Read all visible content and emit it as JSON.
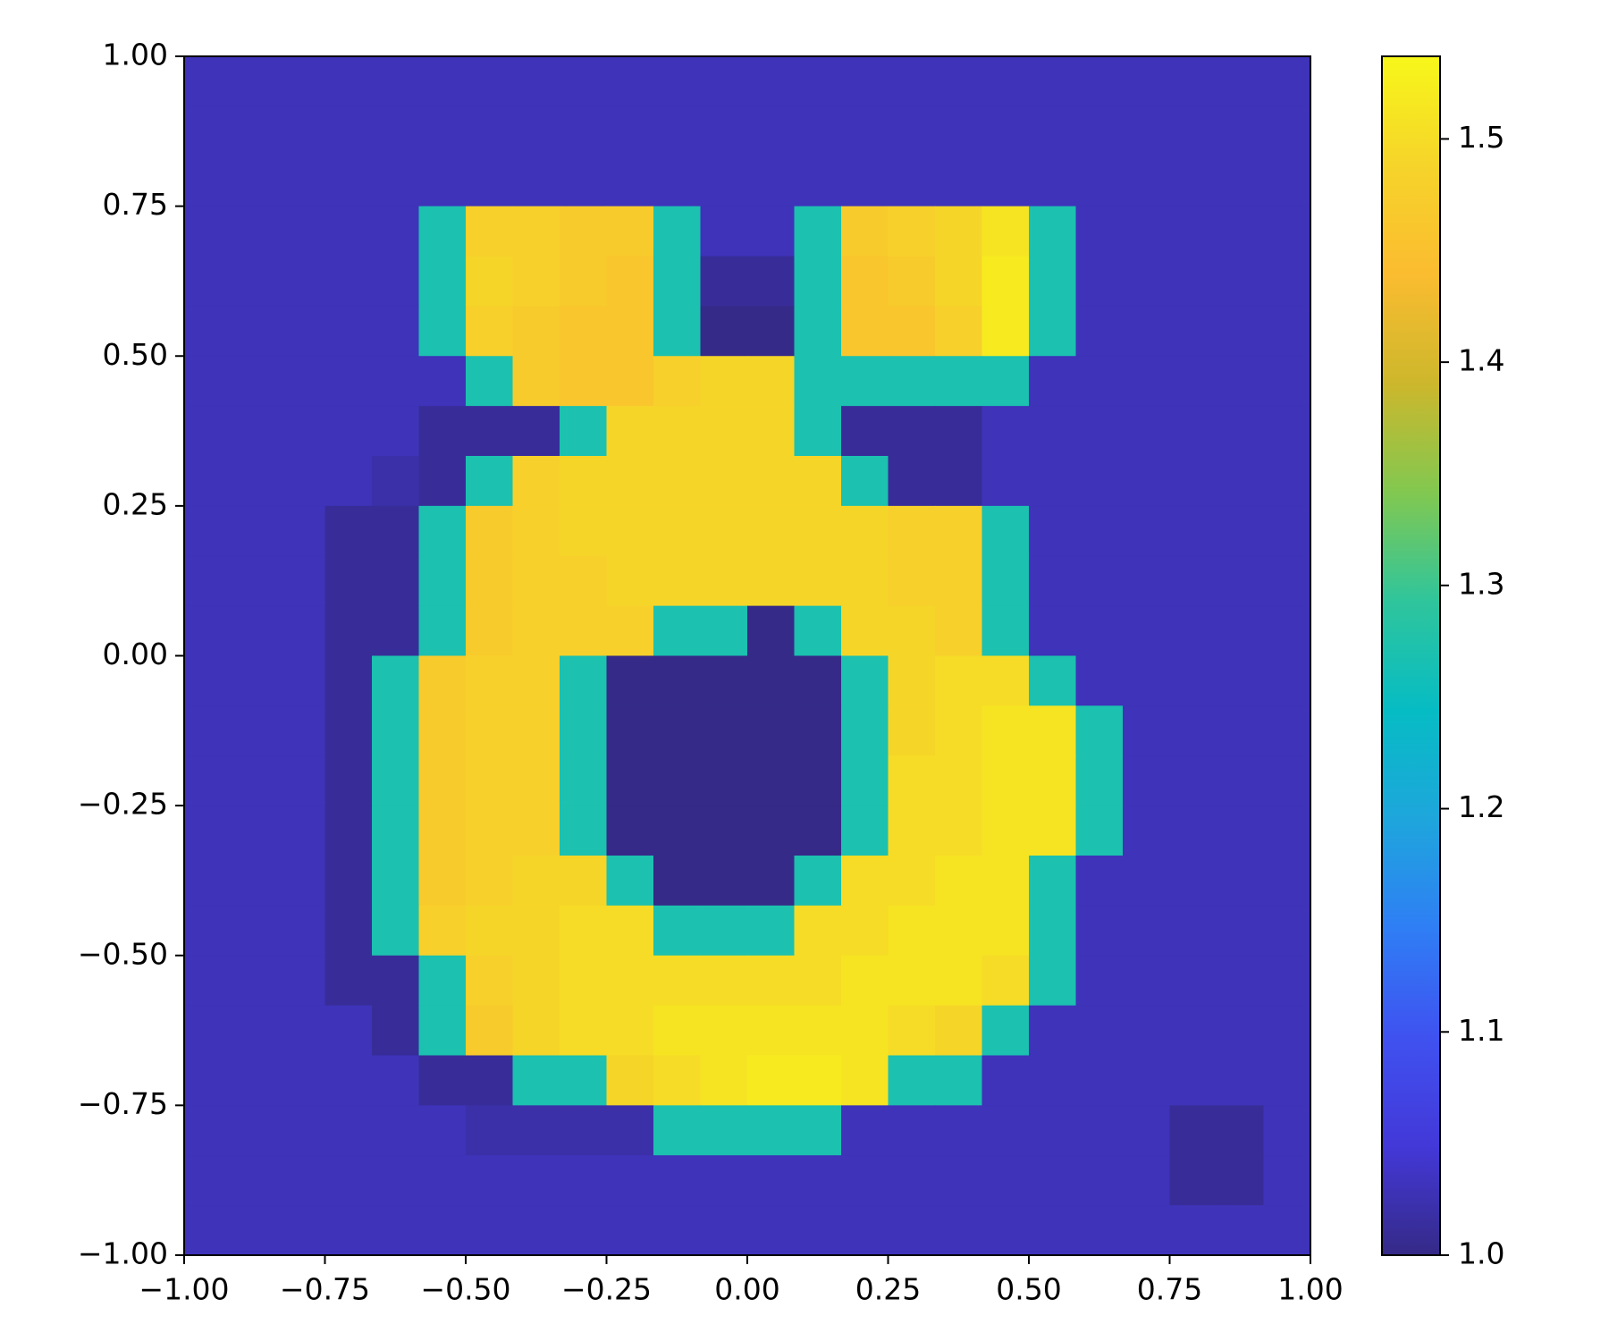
{
  "chart_data": {
    "type": "heatmap",
    "xlim": [
      -1,
      1
    ],
    "ylim": [
      -1,
      1
    ],
    "clim": [
      1.0,
      1.537
    ],
    "xticks": [
      {
        "value": -1,
        "label": "−1.00"
      },
      {
        "value": -0.75,
        "label": "−0.75"
      },
      {
        "value": -0.5,
        "label": "−0.50"
      },
      {
        "value": -0.25,
        "label": "−0.25"
      },
      {
        "value": 0,
        "label": "0.00"
      },
      0.25,
      {
        "value": 0.5,
        "label": "0.50"
      },
      0.75,
      {
        "value": 1,
        "label": "1.00"
      }
    ],
    "yticks": [
      {
        "value": -1,
        "label": "−1.00"
      },
      {
        "value": -0.75,
        "label": "−0.75"
      },
      {
        "value": -0.5,
        "label": "−0.50"
      },
      {
        "value": -0.25,
        "label": "−0.25"
      },
      {
        "value": 0,
        "label": "0.00"
      },
      0.25,
      {
        "value": 0.5,
        "label": "0.50"
      },
      0.75,
      {
        "value": 1,
        "label": "1.00"
      }
    ],
    "cticks": [
      {
        "value": 1,
        "label": "1.0"
      },
      1.1,
      1.2,
      1.3,
      1.4,
      1.5
    ],
    "colormap": [
      "#352a87",
      "#4338d8",
      "#3f52f0",
      "#2f7ef5",
      "#1ea6dc",
      "#06bcc4",
      "#2fc59c",
      "#82c850",
      "#cdb72c",
      "#fbbc30",
      "#f6d42a",
      "#f7f71a"
    ],
    "z": [
      [
        1.03,
        1.03,
        1.03,
        1.03,
        1.03,
        1.03,
        1.03,
        1.03,
        1.03,
        1.03,
        1.03,
        1.03,
        1.03,
        1.03,
        1.03,
        1.03,
        1.03,
        1.03,
        1.03,
        1.03,
        1.03,
        1.03,
        1.03,
        1.03
      ],
      [
        1.03,
        1.03,
        1.03,
        1.03,
        1.03,
        1.03,
        1.03,
        1.03,
        1.03,
        1.03,
        1.03,
        1.03,
        1.03,
        1.03,
        1.03,
        1.03,
        1.03,
        1.03,
        1.03,
        1.03,
        1.03,
        1.03,
        1.03,
        1.03
      ],
      [
        1.03,
        1.03,
        1.03,
        1.03,
        1.03,
        1.03,
        1.03,
        1.03,
        1.03,
        1.03,
        1.03,
        1.03,
        1.03,
        1.03,
        1.03,
        1.03,
        1.03,
        1.03,
        1.03,
        1.03,
        1.03,
        1.03,
        1.03,
        1.03
      ],
      [
        1.03,
        1.03,
        1.03,
        1.03,
        1.03,
        1.27,
        1.48,
        1.48,
        1.47,
        1.47,
        1.27,
        1.03,
        1.03,
        1.27,
        1.47,
        1.48,
        1.49,
        1.51,
        1.27,
        1.03,
        1.03,
        1.03,
        1.03,
        1.03
      ],
      [
        1.03,
        1.03,
        1.03,
        1.03,
        1.03,
        1.27,
        1.49,
        1.48,
        1.47,
        1.46,
        1.27,
        1.01,
        1.01,
        1.27,
        1.46,
        1.47,
        1.49,
        1.52,
        1.27,
        1.03,
        1.03,
        1.03,
        1.03,
        1.03
      ],
      [
        1.03,
        1.03,
        1.03,
        1.03,
        1.03,
        1.27,
        1.48,
        1.47,
        1.46,
        1.46,
        1.27,
        1.0,
        1.0,
        1.27,
        1.46,
        1.46,
        1.48,
        1.52,
        1.27,
        1.03,
        1.03,
        1.03,
        1.03,
        1.03
      ],
      [
        1.03,
        1.03,
        1.03,
        1.03,
        1.03,
        1.03,
        1.27,
        1.47,
        1.46,
        1.46,
        1.48,
        1.49,
        1.49,
        1.27,
        1.27,
        1.27,
        1.27,
        1.27,
        1.03,
        1.03,
        1.03,
        1.03,
        1.03,
        1.03
      ],
      [
        1.03,
        1.03,
        1.03,
        1.03,
        1.03,
        1.01,
        1.01,
        1.01,
        1.27,
        1.49,
        1.49,
        1.49,
        1.49,
        1.27,
        1.01,
        1.01,
        1.01,
        1.03,
        1.03,
        1.03,
        1.03,
        1.03,
        1.03,
        1.03
      ],
      [
        1.03,
        1.03,
        1.03,
        1.03,
        1.02,
        1.01,
        1.27,
        1.48,
        1.49,
        1.49,
        1.49,
        1.49,
        1.49,
        1.49,
        1.27,
        1.01,
        1.01,
        1.03,
        1.03,
        1.03,
        1.03,
        1.03,
        1.03,
        1.03
      ],
      [
        1.03,
        1.03,
        1.03,
        1.01,
        1.01,
        1.27,
        1.47,
        1.48,
        1.49,
        1.49,
        1.49,
        1.49,
        1.49,
        1.49,
        1.49,
        1.48,
        1.48,
        1.27,
        1.03,
        1.03,
        1.03,
        1.03,
        1.03,
        1.03
      ],
      [
        1.03,
        1.03,
        1.03,
        1.01,
        1.01,
        1.27,
        1.47,
        1.48,
        1.48,
        1.49,
        1.49,
        1.49,
        1.49,
        1.49,
        1.49,
        1.48,
        1.48,
        1.27,
        1.03,
        1.03,
        1.03,
        1.03,
        1.03,
        1.03
      ],
      [
        1.03,
        1.03,
        1.03,
        1.01,
        1.01,
        1.27,
        1.47,
        1.48,
        1.48,
        1.48,
        1.27,
        1.27,
        1.0,
        1.27,
        1.49,
        1.49,
        1.48,
        1.27,
        1.03,
        1.03,
        1.03,
        1.03,
        1.03,
        1.03
      ],
      [
        1.03,
        1.03,
        1.03,
        1.01,
        1.27,
        1.47,
        1.48,
        1.48,
        1.27,
        1.0,
        1.0,
        1.0,
        1.0,
        1.0,
        1.27,
        1.49,
        1.5,
        1.5,
        1.27,
        1.03,
        1.03,
        1.03,
        1.03,
        1.03
      ],
      [
        1.03,
        1.03,
        1.03,
        1.01,
        1.27,
        1.47,
        1.48,
        1.48,
        1.27,
        1.0,
        1.0,
        1.0,
        1.0,
        1.0,
        1.27,
        1.49,
        1.5,
        1.51,
        1.51,
        1.27,
        1.03,
        1.03,
        1.03,
        1.03
      ],
      [
        1.03,
        1.03,
        1.03,
        1.01,
        1.27,
        1.47,
        1.48,
        1.48,
        1.27,
        1.0,
        1.0,
        1.0,
        1.0,
        1.0,
        1.27,
        1.5,
        1.5,
        1.51,
        1.51,
        1.27,
        1.03,
        1.03,
        1.03,
        1.03
      ],
      [
        1.03,
        1.03,
        1.03,
        1.01,
        1.27,
        1.47,
        1.48,
        1.48,
        1.27,
        1.0,
        1.0,
        1.0,
        1.0,
        1.0,
        1.27,
        1.5,
        1.5,
        1.51,
        1.51,
        1.27,
        1.03,
        1.03,
        1.03,
        1.03
      ],
      [
        1.03,
        1.03,
        1.03,
        1.01,
        1.27,
        1.47,
        1.48,
        1.49,
        1.49,
        1.27,
        1.0,
        1.0,
        1.0,
        1.27,
        1.5,
        1.5,
        1.51,
        1.51,
        1.27,
        1.03,
        1.03,
        1.03,
        1.03,
        1.03
      ],
      [
        1.03,
        1.03,
        1.03,
        1.01,
        1.27,
        1.48,
        1.49,
        1.49,
        1.5,
        1.5,
        1.27,
        1.27,
        1.27,
        1.5,
        1.5,
        1.51,
        1.51,
        1.51,
        1.27,
        1.03,
        1.03,
        1.03,
        1.03,
        1.03
      ],
      [
        1.03,
        1.03,
        1.03,
        1.01,
        1.01,
        1.27,
        1.48,
        1.49,
        1.5,
        1.5,
        1.5,
        1.5,
        1.5,
        1.5,
        1.51,
        1.51,
        1.51,
        1.5,
        1.27,
        1.03,
        1.03,
        1.03,
        1.03,
        1.03
      ],
      [
        1.03,
        1.03,
        1.03,
        1.03,
        1.01,
        1.27,
        1.47,
        1.49,
        1.5,
        1.5,
        1.51,
        1.51,
        1.51,
        1.51,
        1.51,
        1.5,
        1.49,
        1.27,
        1.03,
        1.03,
        1.03,
        1.03,
        1.03,
        1.03
      ],
      [
        1.03,
        1.03,
        1.03,
        1.03,
        1.03,
        1.01,
        1.01,
        1.27,
        1.27,
        1.49,
        1.5,
        1.51,
        1.52,
        1.52,
        1.51,
        1.27,
        1.27,
        1.03,
        1.03,
        1.03,
        1.03,
        1.03,
        1.03,
        1.03
      ],
      [
        1.03,
        1.03,
        1.03,
        1.03,
        1.03,
        1.03,
        1.02,
        1.02,
        1.02,
        1.02,
        1.27,
        1.27,
        1.27,
        1.27,
        1.03,
        1.03,
        1.03,
        1.03,
        1.03,
        1.03,
        1.03,
        1.01,
        1.01,
        1.03
      ],
      [
        1.03,
        1.03,
        1.03,
        1.03,
        1.03,
        1.03,
        1.03,
        1.03,
        1.03,
        1.03,
        1.03,
        1.03,
        1.03,
        1.03,
        1.03,
        1.03,
        1.03,
        1.03,
        1.03,
        1.03,
        1.03,
        1.01,
        1.01,
        1.03
      ],
      [
        1.03,
        1.03,
        1.03,
        1.03,
        1.03,
        1.03,
        1.03,
        1.03,
        1.03,
        1.03,
        1.03,
        1.03,
        1.03,
        1.03,
        1.03,
        1.03,
        1.03,
        1.03,
        1.03,
        1.03,
        1.03,
        1.03,
        1.03,
        1.03
      ]
    ]
  }
}
